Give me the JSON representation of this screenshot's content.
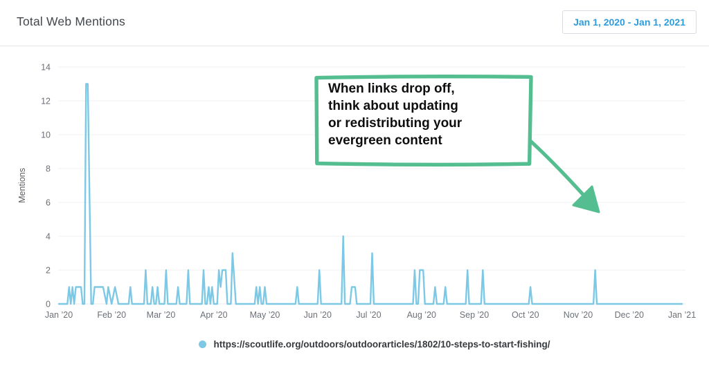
{
  "header": {
    "title": "Total Web Mentions",
    "date_range": "Jan 1, 2020 - Jan 1, 2021"
  },
  "colors": {
    "line": "#7cc8e5",
    "annotation_green": "#55be91",
    "link_blue": "#2d9cdb",
    "grid": "#f1f1f1",
    "grid_zero": "#e8e8e8",
    "axis_text": "#6b7077"
  },
  "annotation": {
    "lines": [
      "When links drop off,",
      "think about updating",
      "or redistributing your",
      "evergreen content"
    ]
  },
  "legend": {
    "marker": "dot",
    "label": "https://scoutlife.org/outdoors/outdoorarticles/1802/10-steps-to-start-fishing/"
  },
  "chart_data": {
    "type": "line",
    "title": "Total Web Mentions",
    "xlabel": "",
    "ylabel": "Mentions",
    "ylim": [
      0,
      14
    ],
    "yticks": [
      0,
      2,
      4,
      6,
      8,
      10,
      12,
      14
    ],
    "grid": true,
    "legend_position": "bottom-center",
    "x_unit": "day offset from Jan 1 2020 (366-day span)",
    "xtick_days": [
      0,
      31,
      60,
      91,
      121,
      152,
      182,
      213,
      244,
      274,
      305,
      335,
      366
    ],
    "xtick_labels": [
      "Jan ’20",
      "Feb ’20",
      "Mar ’20",
      "Apr ’20",
      "May ’20",
      "Jun ’20",
      "Jul ’20",
      "Aug ’20",
      "Sep ’20",
      "Oct ’20",
      "Nov ’20",
      "Dec ’20",
      "Jan ’21"
    ],
    "series": [
      {
        "name": "https://scoutlife.org/outdoors/outdoorarticles/1802/10-steps-to-start-fishing/",
        "points": [
          [
            0,
            0
          ],
          [
            5,
            0
          ],
          [
            6,
            1
          ],
          [
            7,
            0
          ],
          [
            8,
            1
          ],
          [
            9,
            0
          ],
          [
            10,
            1
          ],
          [
            13,
            1
          ],
          [
            14,
            0
          ],
          [
            15,
            0
          ],
          [
            16,
            13
          ],
          [
            17,
            13
          ],
          [
            19,
            0
          ],
          [
            20,
            0
          ],
          [
            21,
            1
          ],
          [
            26,
            1
          ],
          [
            28,
            0
          ],
          [
            29,
            1
          ],
          [
            31,
            0
          ],
          [
            33,
            1
          ],
          [
            35,
            0
          ],
          [
            41,
            0
          ],
          [
            42,
            1
          ],
          [
            43,
            0
          ],
          [
            50,
            0
          ],
          [
            51,
            2
          ],
          [
            52,
            0
          ],
          [
            54,
            0
          ],
          [
            55,
            1
          ],
          [
            56,
            0
          ],
          [
            57,
            0
          ],
          [
            58,
            1
          ],
          [
            59,
            0
          ],
          [
            62,
            0
          ],
          [
            63,
            2
          ],
          [
            64,
            0
          ],
          [
            69,
            0
          ],
          [
            70,
            1
          ],
          [
            71,
            0
          ],
          [
            75,
            0
          ],
          [
            76,
            2
          ],
          [
            77,
            0
          ],
          [
            84,
            0
          ],
          [
            85,
            2
          ],
          [
            86,
            0
          ],
          [
            87,
            0
          ],
          [
            88,
            1
          ],
          [
            89,
            0
          ],
          [
            90,
            1
          ],
          [
            91,
            0
          ],
          [
            93,
            0
          ],
          [
            94,
            2
          ],
          [
            95,
            1
          ],
          [
            96,
            2
          ],
          [
            98,
            2
          ],
          [
            99,
            0
          ],
          [
            101,
            0
          ],
          [
            102,
            3
          ],
          [
            104,
            0
          ],
          [
            115,
            0
          ],
          [
            116,
            1
          ],
          [
            117,
            0
          ],
          [
            118,
            1
          ],
          [
            119,
            0
          ],
          [
            120,
            0
          ],
          [
            121,
            1
          ],
          [
            122,
            0
          ],
          [
            139,
            0
          ],
          [
            140,
            1
          ],
          [
            141,
            0
          ],
          [
            152,
            0
          ],
          [
            153,
            2
          ],
          [
            154,
            0
          ],
          [
            166,
            0
          ],
          [
            167,
            4
          ],
          [
            168,
            0
          ],
          [
            171,
            0
          ],
          [
            172,
            1
          ],
          [
            174,
            1
          ],
          [
            175,
            0
          ],
          [
            183,
            0
          ],
          [
            184,
            3
          ],
          [
            185,
            0
          ],
          [
            208,
            0
          ],
          [
            209,
            2
          ],
          [
            210,
            0
          ],
          [
            211,
            0
          ],
          [
            212,
            2
          ],
          [
            214,
            2
          ],
          [
            215,
            0
          ],
          [
            220,
            0
          ],
          [
            221,
            1
          ],
          [
            222,
            0
          ],
          [
            226,
            0
          ],
          [
            227,
            1
          ],
          [
            228,
            0
          ],
          [
            239,
            0
          ],
          [
            240,
            2
          ],
          [
            241,
            0
          ],
          [
            248,
            0
          ],
          [
            249,
            2
          ],
          [
            250,
            0
          ],
          [
            276,
            0
          ],
          [
            277,
            1
          ],
          [
            278,
            0
          ],
          [
            314,
            0
          ],
          [
            315,
            2
          ],
          [
            316,
            0
          ],
          [
            366,
            0
          ]
        ]
      }
    ]
  }
}
